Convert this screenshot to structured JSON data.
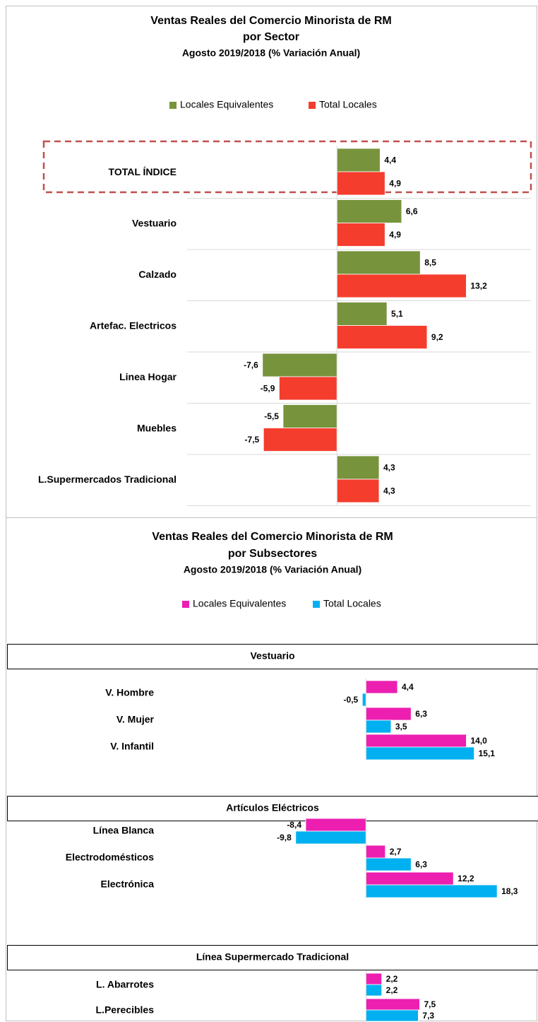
{
  "chart_data": [
    {
      "type": "bar",
      "orientation": "horizontal",
      "title": "Ventas Reales del Comercio Minorista de RM",
      "subtitle": "por Sector",
      "note": "Agosto 2019/2018 (% Variación Anual)",
      "categories": [
        "TOTAL ÍNDICE",
        "Vestuario",
        "Calzado",
        "Artefac. Electricos",
        "Linea Hogar",
        "Muebles",
        "L.Supermercados Tradicional"
      ],
      "series": [
        {
          "name": "Locales Equivalentes",
          "color": "#77933c",
          "values": [
            4.4,
            6.6,
            8.5,
            5.1,
            -7.6,
            -5.5,
            4.3
          ],
          "value_labels": [
            "4,4",
            "6,6",
            "8,5",
            "5,1",
            "-7,6",
            "-5,5",
            "4,3"
          ]
        },
        {
          "name": "Total Locales",
          "color": "#f53d2d",
          "values": [
            4.9,
            4.9,
            13.2,
            9.2,
            -5.9,
            -7.5,
            4.3
          ],
          "value_labels": [
            "4,9",
            "4,9",
            "13,2",
            "9,2",
            "-5,9",
            "-7,5",
            "4,3"
          ]
        }
      ],
      "xlim": [
        -15.3,
        19.8
      ],
      "legend": "top"
    },
    {
      "type": "bar",
      "orientation": "horizontal",
      "title": "Ventas Reales del Comercio Minorista de RM",
      "subtitle": "por Subsectores",
      "note": "Agosto 2019/2018 (% Variación Anual)",
      "panel_title": "Vestuario",
      "categories": [
        "V. Hombre",
        "V. Mujer",
        "V. Infantil"
      ],
      "series": [
        {
          "name": "Locales Equivalentes",
          "color": "#ec1fb1",
          "values": [
            4.4,
            6.3,
            14.0
          ],
          "value_labels": [
            "4,4",
            "6,3",
            "14,0"
          ]
        },
        {
          "name": "Total Locales",
          "color": "#00b0f0",
          "values": [
            -0.5,
            3.5,
            15.1
          ],
          "value_labels": [
            "-0,5",
            "3,5",
            "15,1"
          ]
        }
      ],
      "xlim": [
        -21.5,
        24
      ],
      "legend": "top"
    },
    {
      "type": "bar",
      "orientation": "horizontal",
      "panel_title": "Artículos Eléctricos",
      "categories": [
        "Línea Blanca",
        "Electrodomésticos",
        "Electrónica"
      ],
      "series": [
        {
          "color": "#ec1fb1",
          "values": [
            -8.4,
            2.7,
            12.2
          ],
          "value_labels": [
            "-8,4",
            "2,7",
            "12,2"
          ]
        },
        {
          "color": "#00b0f0",
          "values": [
            -9.8,
            6.3,
            18.3
          ],
          "value_labels": [
            "-9,8",
            "6,3",
            "18,3"
          ]
        }
      ],
      "xlim": [
        -21.5,
        24
      ]
    },
    {
      "type": "bar",
      "orientation": "horizontal",
      "panel_title": "Línea Supermercado Tradicional",
      "categories": [
        "L. Abarrotes",
        "L.Perecibles"
      ],
      "series": [
        {
          "color": "#ec1fb1",
          "values": [
            2.2,
            7.5
          ],
          "value_labels": [
            "2,2",
            "7,5"
          ]
        },
        {
          "color": "#00b0f0",
          "values": [
            2.2,
            7.3
          ],
          "value_labels": [
            "2,2",
            "7,3"
          ]
        }
      ],
      "xlim": [
        -21.5,
        24
      ]
    }
  ]
}
